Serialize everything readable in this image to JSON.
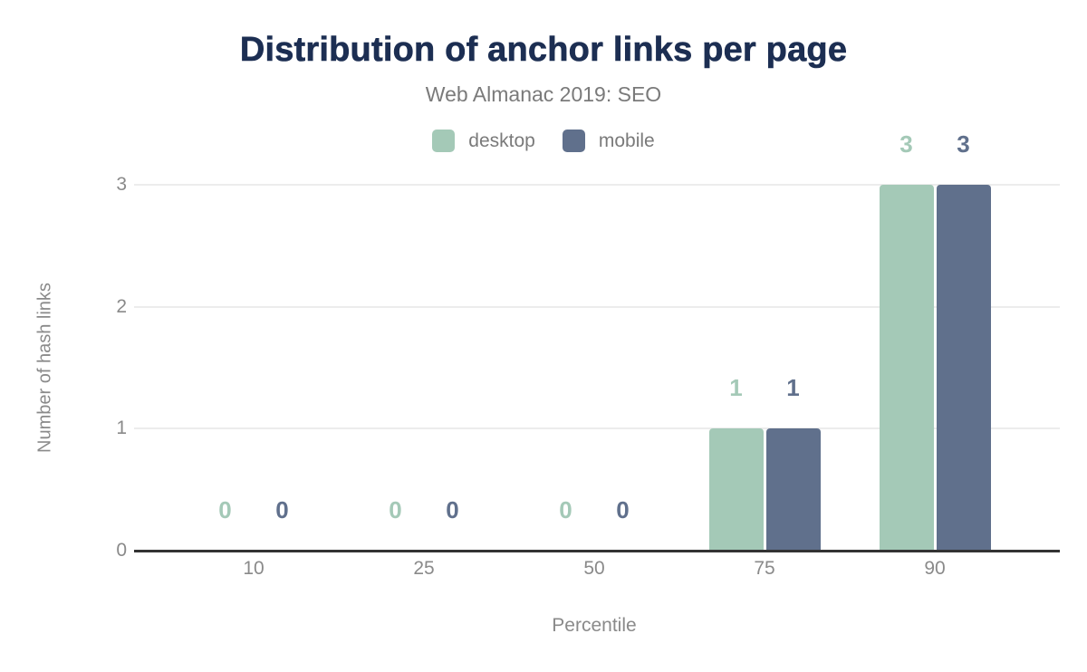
{
  "header": {
    "title": "Distribution of anchor links per page",
    "subtitle": "Web Almanac 2019: SEO"
  },
  "chart_data": {
    "type": "bar",
    "categories": [
      "10",
      "25",
      "50",
      "75",
      "90"
    ],
    "series": [
      {
        "name": "desktop",
        "color": "#a4c9b7",
        "values": [
          0,
          0,
          0,
          1,
          3
        ]
      },
      {
        "name": "mobile",
        "color": "#60708c",
        "values": [
          0,
          0,
          0,
          1,
          3
        ]
      }
    ],
    "title": "Distribution of anchor links per page",
    "subtitle": "Web Almanac 2019: SEO",
    "xlabel": "Percentile",
    "ylabel": "Number of hash links",
    "ylim": [
      0,
      3
    ],
    "yticks": [
      0,
      1,
      2,
      3
    ],
    "grid": "horizontal",
    "legend_position": "top",
    "value_labels": true
  },
  "colors": {
    "title_text": "#1c2e52",
    "muted_text": "#7a7a7a",
    "tick_text": "#8a8a8a",
    "gridline": "#ececec",
    "axis_line": "#333333",
    "background": "#ffffff"
  }
}
